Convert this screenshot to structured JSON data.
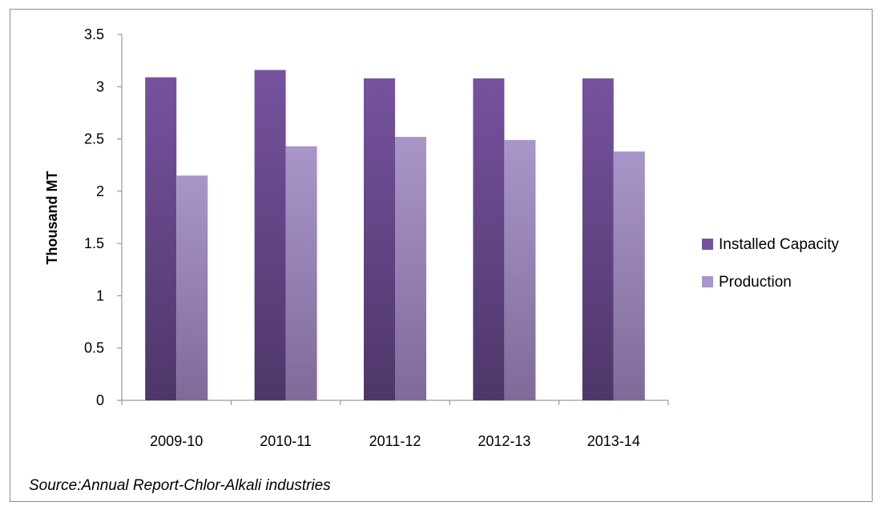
{
  "chart_data": {
    "type": "bar",
    "categories": [
      "2009-10",
      "2010-11",
      "2011-12",
      "2012-13",
      "2013-14"
    ],
    "series": [
      {
        "name": "Installed Capacity",
        "values": [
          3.09,
          3.16,
          3.08,
          3.08,
          3.08
        ]
      },
      {
        "name": "Production",
        "values": [
          2.15,
          2.43,
          2.52,
          2.49,
          2.38
        ]
      }
    ],
    "title": "",
    "xlabel": "",
    "ylabel": "Thousand MT",
    "ylim": [
      0,
      3.5
    ],
    "yticks": [
      "0",
      "0.5",
      "1",
      "1.5",
      "2",
      "2.5",
      "3",
      "3.5"
    ],
    "grid": false,
    "legend_position": "right",
    "colors": {
      "installed_top": "#76529f",
      "installed_bottom": "#4e3669",
      "production_top": "#a996c9",
      "production_bottom": "#7f6a9a"
    }
  },
  "source_note": "Source:Annual Report-Chlor-Alkali industries"
}
